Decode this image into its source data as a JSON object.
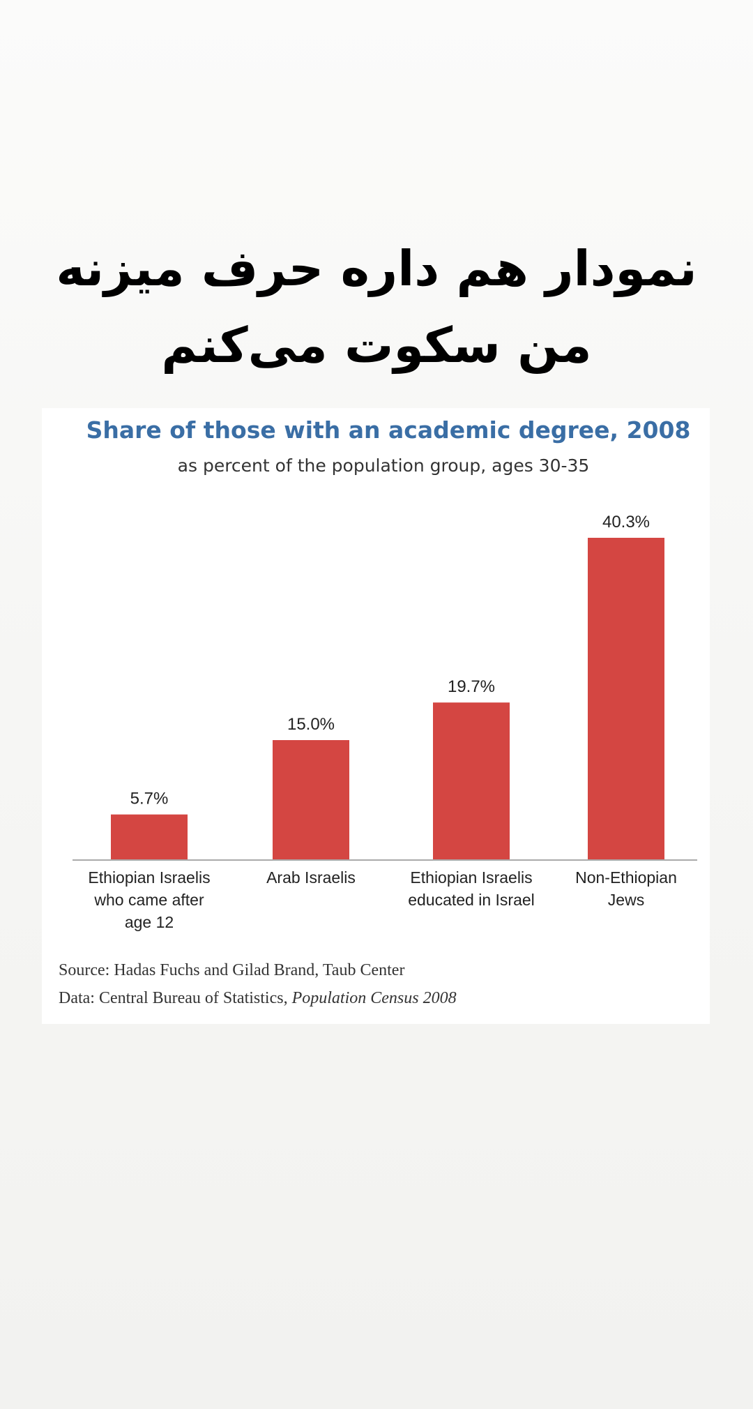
{
  "caption": {
    "line1": "نمودار هم داره حرف میزنه",
    "line2": "من سکوت می‌کنم"
  },
  "chart_data": {
    "type": "bar",
    "title": "Share of those with an academic degree, 2008",
    "subtitle": "as percent of the population group, ages 30-35",
    "categories": [
      [
        "Ethiopian Israelis",
        "who came after",
        "age 12"
      ],
      [
        "Arab Israelis"
      ],
      [
        "Ethiopian Israelis",
        "educated in Israel"
      ],
      [
        "Non-Ethiopian",
        "Jews"
      ]
    ],
    "values": [
      5.7,
      15.0,
      19.7,
      40.3
    ],
    "value_labels": [
      "5.7%",
      "15.0%",
      "19.7%",
      "40.3%"
    ],
    "ylim": [
      0,
      40.3
    ],
    "grid": false,
    "bar_color": "#d44642",
    "title_color": "#3a6ea5",
    "source_line1": "Source: Hadas Fuchs and Gilad Brand, Taub Center",
    "source_line2_prefix": "Data: Central Bureau of Statistics, ",
    "source_line2_italic": "Population Census 2008"
  }
}
